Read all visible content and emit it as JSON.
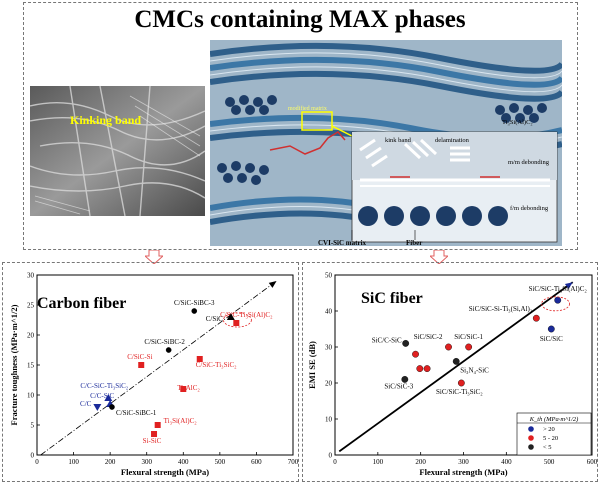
{
  "title": "CMCs containing MAX phases",
  "sem_label": "Kinking band",
  "schematic": {
    "modified_matrix": "modified matrix",
    "kink_band": "kink band",
    "delamination": "delamination",
    "phase": "Ti₃Si(Al)C₂",
    "mm_debonding": "m/m debonding",
    "fm_debonding": "f/m debonding",
    "cvi_matrix": "CVI-SiC matrix",
    "fiber": "Fiber"
  },
  "chart_data": [
    {
      "type": "scatter",
      "title": "Carbon fiber",
      "xlabel": "Flexural strength (MPa)",
      "ylabel": "Fracture toughness (MPa·m^1/2)",
      "xlim": [
        0,
        700
      ],
      "ylim": [
        0,
        30
      ],
      "xticks": [
        0,
        100,
        200,
        300,
        400,
        500,
        600,
        700
      ],
      "yticks": [
        0,
        5,
        10,
        15,
        20,
        25,
        30
      ],
      "trend_line": {
        "from": [
          10,
          0
        ],
        "to": [
          655,
          29
        ]
      },
      "points": [
        {
          "label": "C/SiC-SiBC-3",
          "x": 430,
          "y": 24,
          "color": "#000000",
          "shape": "circle"
        },
        {
          "label": "C/SiC-Ti₃Si(Al)C₂",
          "x": 545,
          "y": 22,
          "color": "#e02020",
          "shape": "square"
        },
        {
          "label": "C/SiC",
          "x": 530,
          "y": 23,
          "color": "#000000",
          "shape": "triangle"
        },
        {
          "label": "C/SiC-SiBC-2",
          "x": 360,
          "y": 17.5,
          "color": "#000000",
          "shape": "circle"
        },
        {
          "label": "C/SiC-Si",
          "x": 285,
          "y": 15,
          "color": "#e02020",
          "shape": "square"
        },
        {
          "label": "C/SiC-Ti₃SiC₂",
          "x": 445,
          "y": 16,
          "color": "#e02020",
          "shape": "square"
        },
        {
          "label": "Ti₃AlC₂",
          "x": 400,
          "y": 11,
          "color": "#e02020",
          "shape": "square"
        },
        {
          "label": "C/C-SiC-Ti₃SiC₂",
          "x": 195,
          "y": 9.5,
          "color": "#1a2a9a",
          "shape": "triangle"
        },
        {
          "label": "C/C-SiC",
          "x": 200,
          "y": 8.5,
          "color": "#1a2a9a",
          "shape": "triangle"
        },
        {
          "label": "C/C",
          "x": 165,
          "y": 8,
          "color": "#1a2a9a",
          "shape": "triangle-down"
        },
        {
          "label": "C/SiC-SiBC-1",
          "x": 205,
          "y": 8,
          "color": "#000000",
          "shape": "circle"
        },
        {
          "label": "Ti₃Si(Al)C₂",
          "x": 330,
          "y": 5,
          "color": "#e02020",
          "shape": "square"
        },
        {
          "label": "Si-SiC",
          "x": 320,
          "y": 3.5,
          "color": "#e02020",
          "shape": "square"
        }
      ]
    },
    {
      "type": "scatter",
      "title": "SiC fiber",
      "xlabel": "Flexural strength (MPa)",
      "ylabel": "EMI SE (dB)",
      "xlim": [
        0,
        600
      ],
      "ylim": [
        0,
        50
      ],
      "xticks": [
        0,
        100,
        200,
        300,
        400,
        500,
        600
      ],
      "yticks": [
        0,
        10,
        20,
        30,
        40,
        50
      ],
      "trend_line": {
        "from": [
          10,
          1
        ],
        "to": [
          555,
          48
        ]
      },
      "legend": {
        "title": "K_th (MPa·m^1/2)",
        "placement": "bottom-right",
        "entries": [
          {
            "label": "> 20",
            "color": "#1a2a9a"
          },
          {
            "label": "5 - 20",
            "color": "#e02020"
          },
          {
            "label": "< 5",
            "color": "#222222"
          }
        ]
      },
      "points": [
        {
          "label": "SiC/SiC-Ti₃Si(Al)C₂",
          "x": 520,
          "y": 43,
          "color": "#1a2a9a"
        },
        {
          "label": "SiC/SiC-Si-Ti₃(Si,Al)₂",
          "x": 470,
          "y": 38,
          "color": "#e02020"
        },
        {
          "label": "SiC/SiC",
          "x": 505,
          "y": 35,
          "color": "#1a2a9a"
        },
        {
          "label": "SiC/SiC-2",
          "x": 265,
          "y": 30,
          "color": "#e02020"
        },
        {
          "label": "SiC/SiC-1",
          "x": 312,
          "y": 30,
          "color": "#e02020"
        },
        {
          "label": "SiC/C-SiC",
          "x": 165,
          "y": 31,
          "color": "#222222"
        },
        {
          "label": "",
          "x": 188,
          "y": 28,
          "color": "#e02020"
        },
        {
          "label": "Si₃N₄-SiC",
          "x": 283,
          "y": 26,
          "color": "#222222"
        },
        {
          "label": "",
          "x": 198,
          "y": 24,
          "color": "#e02020"
        },
        {
          "label": "",
          "x": 215,
          "y": 24,
          "color": "#e02020"
        },
        {
          "label": "SiC/SiC-3",
          "x": 163,
          "y": 21,
          "color": "#222222"
        },
        {
          "label": "SiC/SiC-Ti₃SiC₂",
          "x": 295,
          "y": 20,
          "color": "#e02020"
        }
      ]
    }
  ]
}
